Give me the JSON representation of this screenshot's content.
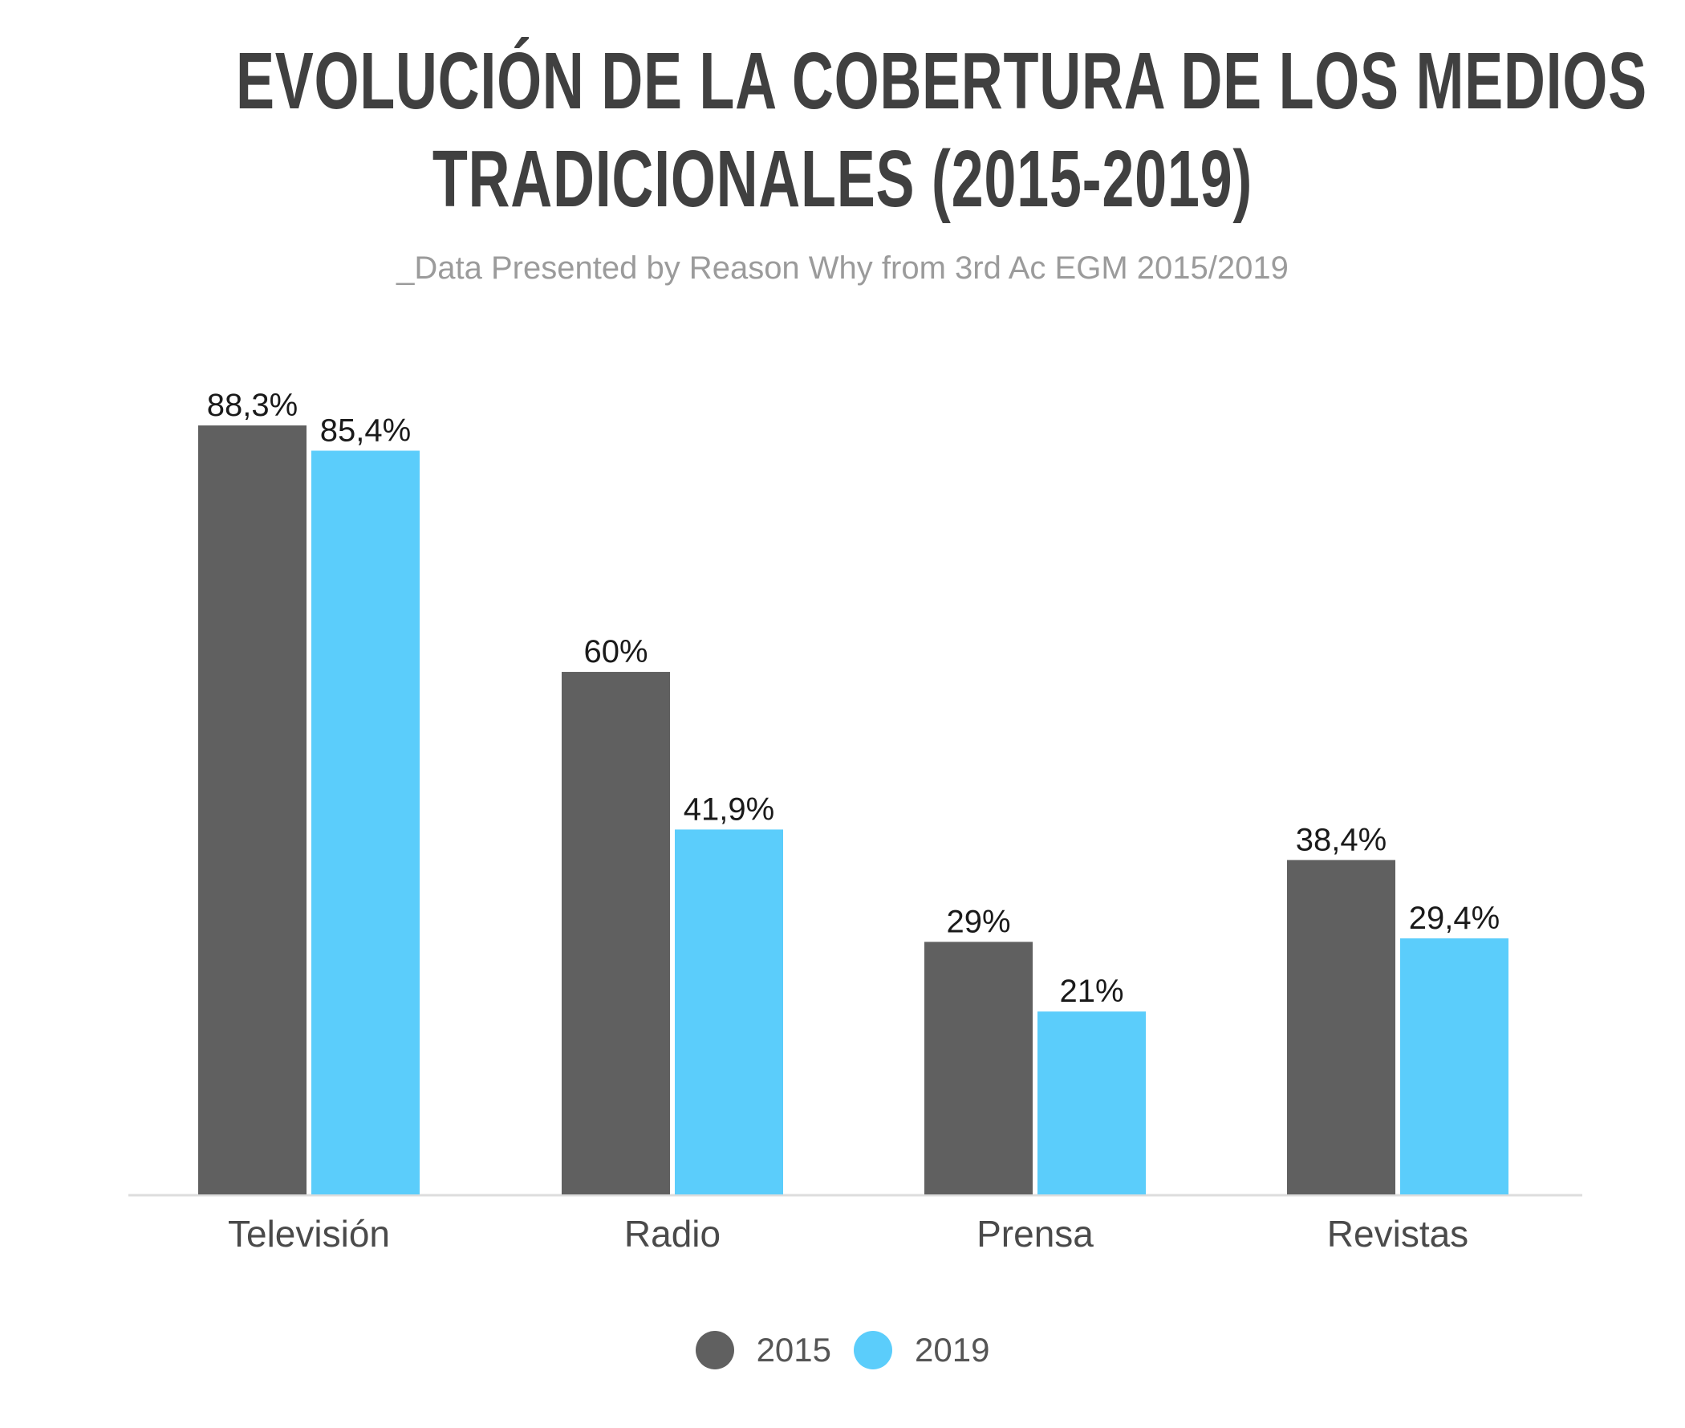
{
  "chart_data": {
    "type": "bar",
    "title_lines": [
      "EVOLUCIÓN DE LA COBERTURA DE LOS MEDIOS",
      "TRADICIONALES (2015-2019)"
    ],
    "subtitle": "_Data Presented by Reason Why from 3rd Ac EGM 2015/2019",
    "categories": [
      "Televisión",
      "Radio",
      "Prensa",
      "Revistas"
    ],
    "series": [
      {
        "name": "2015",
        "color": "#606060",
        "values": [
          88.3,
          60,
          29,
          38.4
        ],
        "labels": [
          "88,3%",
          "60%",
          "29%",
          "38,4%"
        ]
      },
      {
        "name": "2019",
        "color": "#5bcdfb",
        "values": [
          85.4,
          41.9,
          21,
          29.4
        ],
        "labels": [
          "85,4%",
          "41,9%",
          "21%",
          "29,4%"
        ]
      }
    ],
    "ylim": [
      0,
      100
    ],
    "grid": false,
    "legend_position": "bottom-center"
  }
}
